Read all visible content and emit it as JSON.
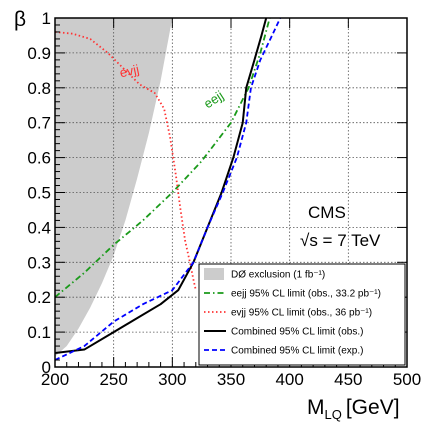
{
  "chart_data": {
    "type": "line",
    "xlabel_main": "M",
    "xlabel_sub": "LQ",
    "xlabel_unit": "[GeV]",
    "ylabel": "β",
    "xlim": [
      200,
      500
    ],
    "ylim": [
      0,
      1
    ],
    "x_ticks": [
      200,
      250,
      300,
      350,
      400,
      450,
      500
    ],
    "x_tick_labels": [
      "200",
      "250",
      "300",
      "350",
      "400",
      "450",
      "500"
    ],
    "y_ticks": [
      0,
      0.1,
      0.2,
      0.3,
      0.4,
      0.5,
      0.6,
      0.7,
      0.8,
      0.9,
      1
    ],
    "y_tick_labels": [
      "0",
      "0.1",
      "0.2",
      "0.3",
      "0.4",
      "0.5",
      "0.6",
      "0.7",
      "0.8",
      "0.9",
      "1"
    ],
    "grid": true,
    "annotations": {
      "experiment": "CMS",
      "energy": "√s = 7 TeV",
      "evjj_curve_label": "evjj",
      "eejj_curve_label": "eejj"
    },
    "legend_position": "bottom-right",
    "series": [
      {
        "name": "DØ exclusion (1 fb⁻¹)",
        "kind": "band",
        "color": "#cccccc",
        "points": [
          [
            200,
            0.03
          ],
          [
            210,
            0.06
          ],
          [
            220,
            0.11
          ],
          [
            230,
            0.17
          ],
          [
            240,
            0.24
          ],
          [
            250,
            0.32
          ],
          [
            260,
            0.42
          ],
          [
            270,
            0.54
          ],
          [
            280,
            0.67
          ],
          [
            290,
            0.82
          ],
          [
            300,
            1.0
          ]
        ]
      },
      {
        "name": "eejj 95% CL limit (obs., 33.2 pb⁻¹)",
        "kind": "line",
        "color": "#1a9a1a",
        "dash": "dashdot",
        "points": [
          [
            200,
            0.2
          ],
          [
            225,
            0.27
          ],
          [
            250,
            0.35
          ],
          [
            275,
            0.42
          ],
          [
            300,
            0.5
          ],
          [
            325,
            0.59
          ],
          [
            350,
            0.7
          ],
          [
            365,
            0.8
          ],
          [
            375,
            0.9
          ],
          [
            383,
            1.0
          ]
        ]
      },
      {
        "name": "evjj 95% CL limit (obs., 36 pb⁻¹)",
        "kind": "line",
        "color": "#ff3333",
        "dash": "dotted",
        "points": [
          [
            200,
            0.96
          ],
          [
            215,
            0.955
          ],
          [
            230,
            0.94
          ],
          [
            245,
            0.9
          ],
          [
            260,
            0.85
          ],
          [
            272,
            0.81
          ],
          [
            285,
            0.785
          ],
          [
            293,
            0.74
          ],
          [
            298,
            0.66
          ],
          [
            303,
            0.55
          ],
          [
            307,
            0.45
          ],
          [
            311,
            0.36
          ],
          [
            315,
            0.3
          ],
          [
            318,
            0.25
          ],
          [
            320,
            0.22
          ]
        ]
      },
      {
        "name": "Combined 95% CL limit (obs.)",
        "kind": "line",
        "color": "#000000",
        "dash": "solid",
        "points": [
          [
            200,
            0.04
          ],
          [
            225,
            0.05
          ],
          [
            250,
            0.1
          ],
          [
            270,
            0.14
          ],
          [
            290,
            0.18
          ],
          [
            305,
            0.22
          ],
          [
            318,
            0.3
          ],
          [
            330,
            0.4
          ],
          [
            342,
            0.5
          ],
          [
            352,
            0.6
          ],
          [
            360,
            0.7
          ],
          [
            363,
            0.8
          ],
          [
            370,
            0.88
          ],
          [
            376,
            0.95
          ],
          [
            380,
            1.0
          ]
        ]
      },
      {
        "name": "Combined 95% CL limit (exp.)",
        "kind": "line",
        "color": "#0000ff",
        "dash": "dashed",
        "points": [
          [
            200,
            0.02
          ],
          [
            225,
            0.06
          ],
          [
            250,
            0.13
          ],
          [
            275,
            0.18
          ],
          [
            300,
            0.22
          ],
          [
            318,
            0.3
          ],
          [
            330,
            0.4
          ],
          [
            343,
            0.5
          ],
          [
            355,
            0.6
          ],
          [
            363,
            0.7
          ],
          [
            367,
            0.8
          ],
          [
            375,
            0.88
          ],
          [
            385,
            0.95
          ],
          [
            392,
            1.0
          ]
        ]
      }
    ]
  }
}
